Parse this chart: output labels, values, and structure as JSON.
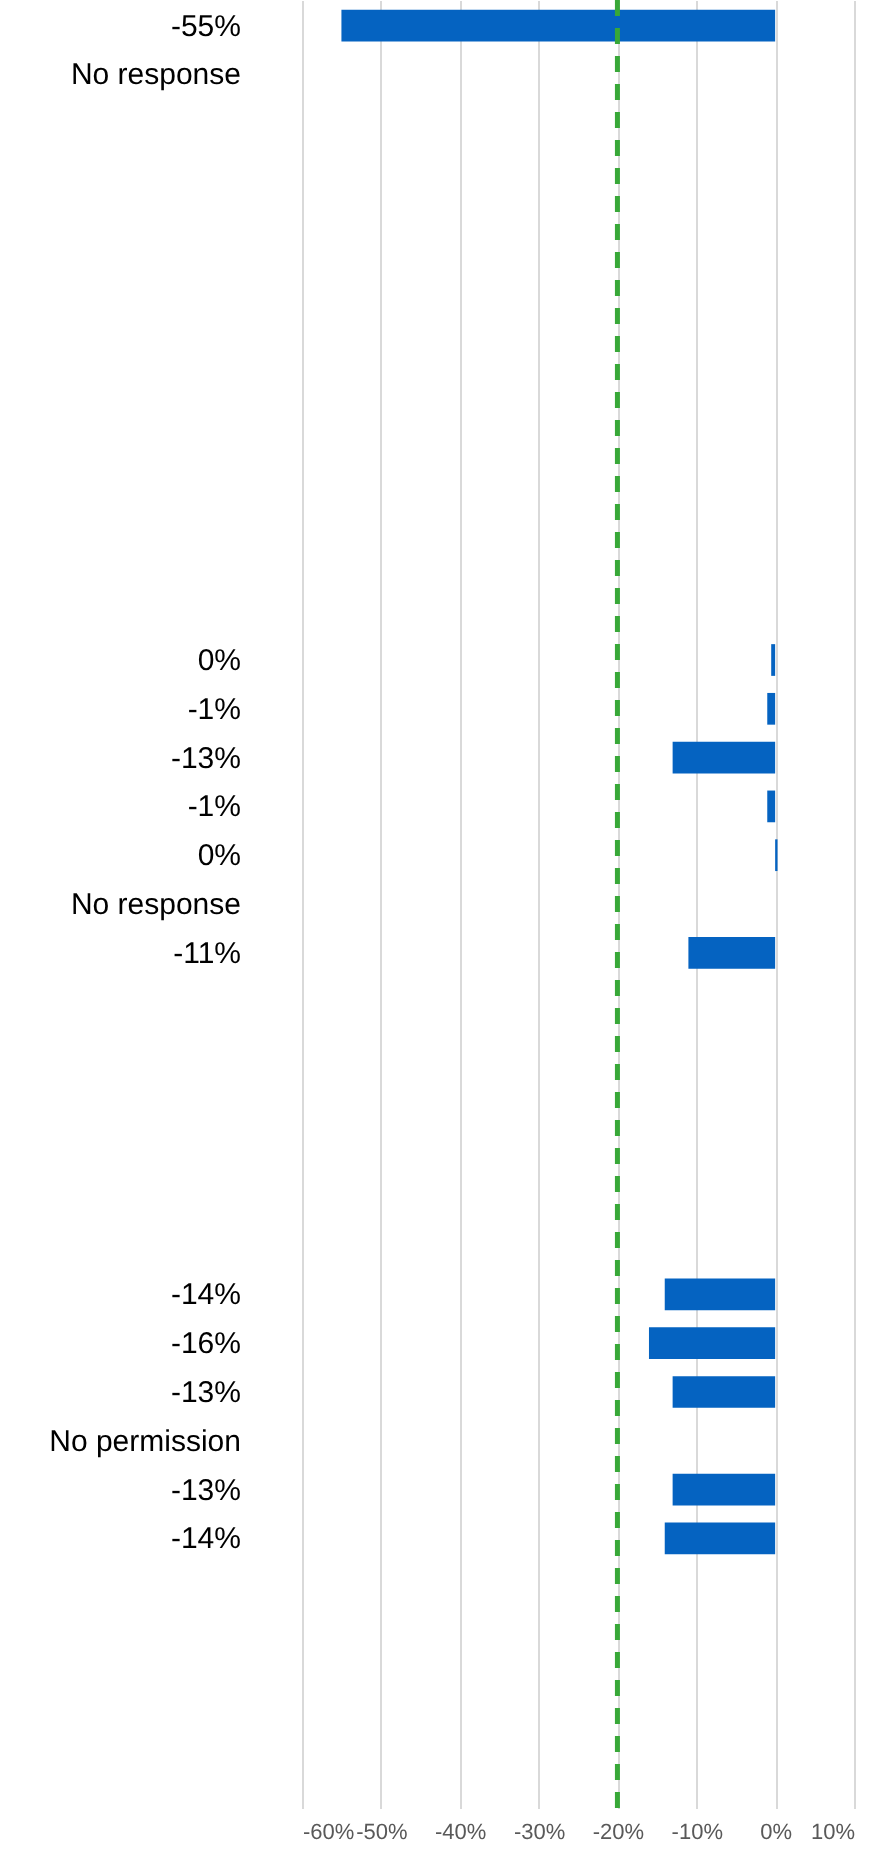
{
  "chart_data": {
    "type": "bar",
    "orientation": "horizontal",
    "categories": [
      "-55%",
      "No response",
      null,
      null,
      null,
      null,
      null,
      null,
      null,
      null,
      null,
      null,
      null,
      "0%",
      "-1%",
      "-13%",
      "-1%",
      "0%",
      "No response",
      "-11%",
      null,
      null,
      null,
      null,
      null,
      null,
      "-14%",
      "-16%",
      "-13%",
      "No permission",
      "-13%",
      "-14%",
      null,
      null,
      null,
      null,
      null
    ],
    "values": [
      -55,
      null,
      null,
      null,
      null,
      null,
      null,
      null,
      null,
      null,
      null,
      null,
      null,
      -0.5,
      -1,
      -13,
      -1,
      0.3,
      null,
      -11,
      null,
      null,
      null,
      null,
      null,
      null,
      -14,
      -16,
      -13,
      null,
      -13,
      -14,
      null,
      null,
      null,
      null,
      null
    ],
    "color": "#0563c1",
    "xlim": [
      -60,
      10
    ],
    "xticks": [
      {
        "value": -60,
        "label": "-60%"
      },
      {
        "value": -50,
        "label": "-50%"
      },
      {
        "value": -40,
        "label": "-40%"
      },
      {
        "value": -30,
        "label": "-30%"
      },
      {
        "value": -20,
        "label": "-20%"
      },
      {
        "value": -10,
        "label": "-10%"
      },
      {
        "value": 0,
        "label": "0%"
      },
      {
        "value": 10,
        "label": "10%"
      }
    ],
    "grid": "x",
    "ref_lines": [
      {
        "axis": "x",
        "value": -20,
        "color": "#38a838",
        "line_style": "dashed"
      }
    ]
  }
}
